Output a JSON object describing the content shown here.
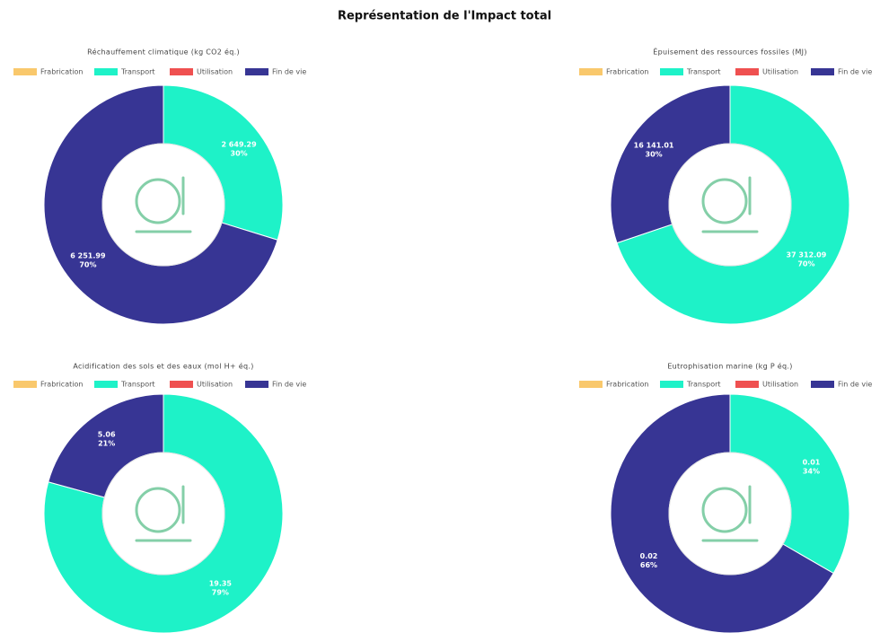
{
  "title": "Représentation de l'Impact total",
  "chart_data": [
    {
      "type": "doughnut",
      "title": "Réchauffement climatique (kg CO2 éq.)",
      "categories": [
        "Frabrication",
        "Transport",
        "Utilisation",
        "Fin de vie"
      ],
      "colors": [
        "#f9c86c",
        "#1ef2c8",
        "#ef5050",
        "#373594"
      ],
      "values": [
        0,
        2649.29,
        0,
        6251.99
      ],
      "value_labels": [
        null,
        "2 649.29",
        null,
        "6 251.99"
      ],
      "percent_labels": [
        null,
        "30%",
        null,
        "70%"
      ]
    },
    {
      "type": "doughnut",
      "title": "Épuisement des ressources fossiles (MJ)",
      "categories": [
        "Frabrication",
        "Transport",
        "Utilisation",
        "Fin de vie"
      ],
      "colors": [
        "#f9c86c",
        "#1ef2c8",
        "#ef5050",
        "#373594"
      ],
      "values": [
        0,
        37312.09,
        0,
        16141.01
      ],
      "value_labels": [
        null,
        "37 312.09",
        null,
        "16 141.01"
      ],
      "percent_labels": [
        null,
        "70%",
        null,
        "30%"
      ]
    },
    {
      "type": "doughnut",
      "title": "Acidification des sols et des eaux (mol H+ éq.)",
      "categories": [
        "Frabrication",
        "Transport",
        "Utilisation",
        "Fin de vie"
      ],
      "colors": [
        "#f9c86c",
        "#1ef2c8",
        "#ef5050",
        "#373594"
      ],
      "values": [
        0,
        19.35,
        0,
        5.06
      ],
      "value_labels": [
        null,
        "19.35",
        null,
        "5.06"
      ],
      "percent_labels": [
        null,
        "79%",
        null,
        "21%"
      ]
    },
    {
      "type": "doughnut",
      "title": "Eutrophisation marine (kg P éq.)",
      "categories": [
        "Frabrication",
        "Transport",
        "Utilisation",
        "Fin de vie"
      ],
      "colors": [
        "#f9c86c",
        "#1ef2c8",
        "#ef5050",
        "#373594"
      ],
      "values": [
        0,
        0.01,
        0,
        0.02
      ],
      "value_labels": [
        null,
        "0.01",
        null,
        "0.02"
      ],
      "percent_labels": [
        null,
        "34%",
        null,
        "66%"
      ]
    }
  ]
}
